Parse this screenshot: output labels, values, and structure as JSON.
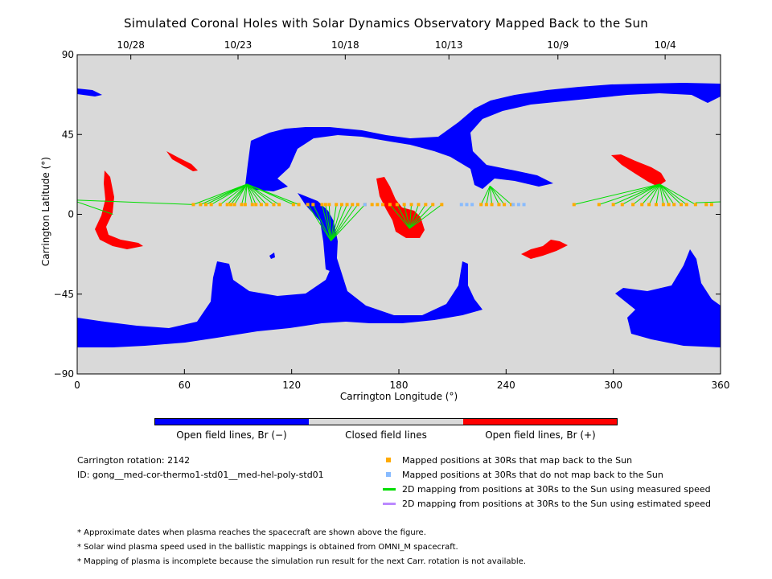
{
  "title": "Simulated Coronal Holes with Solar Dynamics Observatory Mapped Back to the Sun",
  "colors": {
    "background": "#d9d9d9",
    "negative_open": "#0000ff",
    "positive_open": "#ff0000",
    "mapped": "#ffaa00",
    "unmapped": "#88bbff",
    "measured_speed": "#00dd00",
    "estimated_speed": "#bb88ff"
  },
  "chart_data": {
    "type": "scatter",
    "title": "Simulated Coronal Holes with Solar Dynamics Observatory Mapped Back to the Sun",
    "xlabel": "Carrington Longitude (°)",
    "ylabel": "Carrington Latitude (°)",
    "xlim": [
      0,
      360
    ],
    "ylim": [
      -90,
      90
    ],
    "xticks": [
      0,
      60,
      120,
      180,
      240,
      300,
      360
    ],
    "yticks": [
      -90,
      -45,
      0,
      45,
      90
    ],
    "top_axis_dates": [
      {
        "label": "10/28",
        "lon": 30
      },
      {
        "label": "10/23",
        "lon": 90
      },
      {
        "label": "10/18",
        "lon": 150
      },
      {
        "label": "10/13",
        "lon": 208
      },
      {
        "label": "10/9",
        "lon": 269
      },
      {
        "label": "10/4",
        "lon": 329
      }
    ],
    "mapped_points": {
      "lat": 5.5,
      "lon": [
        65,
        69,
        72,
        75,
        80,
        84,
        86,
        88,
        92,
        94,
        98,
        100,
        103,
        106,
        110,
        113,
        121,
        124,
        129,
        132,
        137,
        139,
        141,
        145,
        148,
        151,
        154,
        157,
        161,
        165,
        168,
        171,
        175,
        179,
        183,
        187,
        191,
        195,
        199,
        204,
        226,
        229,
        232,
        236,
        239,
        243,
        278,
        292,
        300,
        305,
        311,
        316,
        320,
        324,
        328,
        331,
        334,
        338,
        341,
        346,
        352,
        355
      ]
    },
    "unmapped_points": {
      "lat": 5.5,
      "lon": [
        161,
        215,
        218,
        221,
        244,
        247,
        250
      ]
    },
    "measured_speed_mappings": [
      {
        "to": [
          95,
          17
        ],
        "from": [
          65,
          69,
          72,
          75,
          80,
          84,
          86,
          88,
          92,
          94,
          98,
          100,
          103,
          106,
          110,
          113,
          121,
          124
        ]
      },
      {
        "to": [
          142,
          -15
        ],
        "from": [
          129,
          132,
          137,
          139,
          141,
          145,
          148,
          151,
          154,
          157,
          161
        ]
      },
      {
        "to": [
          186,
          -8
        ],
        "from": [
          175,
          179,
          183,
          187,
          191,
          195,
          199,
          204
        ]
      },
      {
        "to": [
          231,
          16
        ],
        "from": [
          226,
          229,
          232,
          236,
          239,
          243
        ]
      },
      {
        "to": [
          326,
          17
        ],
        "from": [
          278,
          292,
          300,
          305,
          311,
          316,
          320,
          324,
          328,
          331,
          334,
          338,
          341,
          346
        ]
      }
    ],
    "colorbar": [
      {
        "label": "Open field lines, Br (−)",
        "color": "#0000ff"
      },
      {
        "label": "Closed field lines",
        "color": "#d9d9d9"
      },
      {
        "label": "Open field lines, Br (+)",
        "color": "#ff0000"
      }
    ]
  },
  "info": {
    "rotation": "Carrington rotation: 2142",
    "id": "ID: gong__med-cor-thermo1-std01__med-hel-poly-std01"
  },
  "legend": [
    {
      "label": "Mapped positions at 30Rs that map back to the Sun",
      "kind": "square",
      "color": "#ffaa00"
    },
    {
      "label": "Mapped positions at 30Rs that do not map back to the Sun",
      "kind": "square",
      "color": "#88bbff"
    },
    {
      "label": "2D mapping from positions at 30Rs to the Sun using measured speed",
      "kind": "line",
      "color": "#00dd00"
    },
    {
      "label": "2D mapping from positions at 30Rs to the Sun using estimated speed",
      "kind": "line",
      "color": "#bb88ff"
    }
  ],
  "notes": [
    "* Approximate dates when plasma reaches the spacecraft are shown above the figure.",
    "* Solar wind plasma speed used in the ballistic mappings is obtained from OMNI_M spacecraft.",
    "* Mapping of plasma is incomplete because the simulation run result for the next Carr. rotation is not available."
  ]
}
